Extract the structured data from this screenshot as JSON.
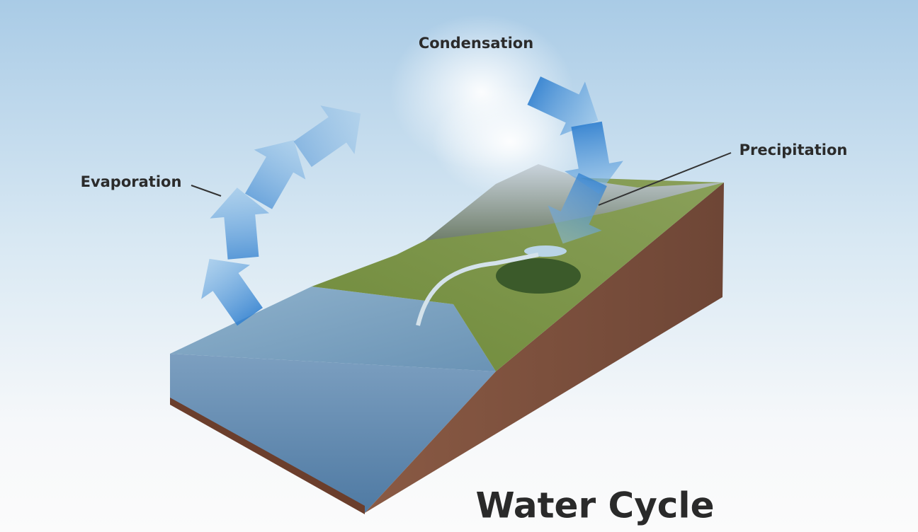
{
  "title": "Water Cycle",
  "labels": {
    "condensation": "Condensation",
    "evaporation": "Evaporation",
    "precipitation": "Precipitation"
  }
}
